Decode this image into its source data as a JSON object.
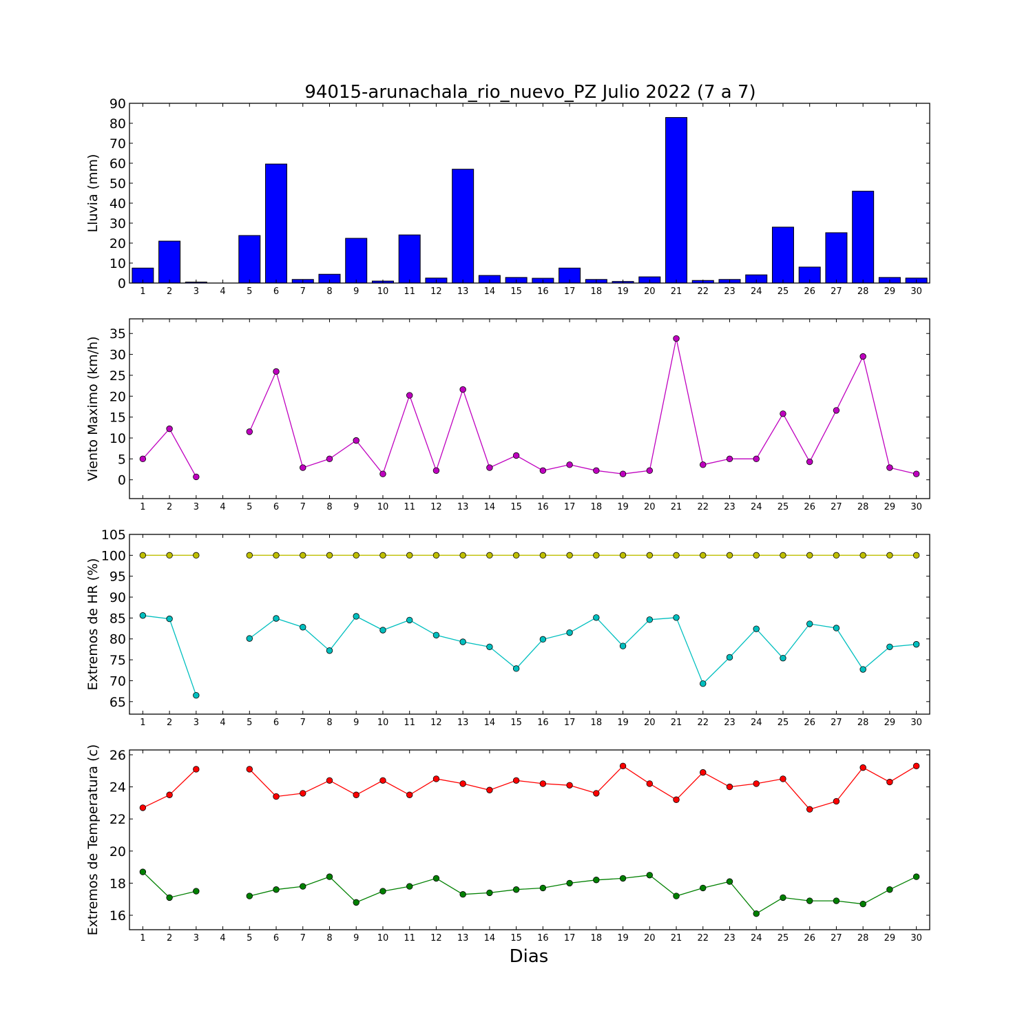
{
  "figure": {
    "title": "94015-arunachala_rio_nuevo_PZ Julio 2022  (7 a 7)",
    "xlabel": "Dias"
  },
  "chart_data": [
    {
      "type": "bar",
      "ylabel": "Lluvia (mm)",
      "ylim": [
        0,
        90
      ],
      "yticks": [
        0,
        10,
        20,
        30,
        40,
        50,
        60,
        70,
        80,
        90
      ],
      "x": [
        1,
        2,
        3,
        4,
        5,
        6,
        7,
        8,
        9,
        10,
        11,
        12,
        13,
        14,
        15,
        16,
        17,
        18,
        19,
        20,
        21,
        22,
        23,
        24,
        25,
        26,
        27,
        28,
        29,
        30
      ],
      "xlim": [
        0.5,
        30.5
      ],
      "grid": false,
      "series": [
        {
          "color": "#0000ff",
          "values": [
            7.5,
            21,
            0.5,
            0,
            23.8,
            59.6,
            1.8,
            4.4,
            22.4,
            1.0,
            24.1,
            2.5,
            57.0,
            3.8,
            2.8,
            2.4,
            7.5,
            1.8,
            0.8,
            3.1,
            82.9,
            1.3,
            1.8,
            4.1,
            28.0,
            8.0,
            25.2,
            46.0,
            2.8,
            2.5
          ]
        }
      ]
    },
    {
      "type": "line",
      "ylabel": "Viento Maximo (km/h)",
      "ylim": [
        -4.5,
        38.5
      ],
      "yticks": [
        0,
        5,
        10,
        15,
        20,
        25,
        30,
        35
      ],
      "x": [
        1,
        2,
        3,
        4,
        5,
        6,
        7,
        8,
        9,
        10,
        11,
        12,
        13,
        14,
        15,
        16,
        17,
        18,
        19,
        20,
        21,
        22,
        23,
        24,
        25,
        26,
        27,
        28,
        29,
        30
      ],
      "xlim": [
        0.5,
        30.5
      ],
      "grid": false,
      "series": [
        {
          "color": "#bf00bf",
          "values": [
            5.0,
            12.2,
            0.7,
            null,
            11.5,
            25.9,
            2.9,
            5.0,
            9.4,
            1.4,
            20.2,
            2.2,
            21.6,
            2.9,
            5.8,
            2.2,
            3.6,
            2.2,
            1.4,
            2.2,
            33.8,
            3.6,
            5.0,
            5.0,
            15.8,
            4.3,
            16.6,
            29.5,
            2.9,
            1.4
          ]
        }
      ]
    },
    {
      "type": "line",
      "ylabel": "Extremos de HR (%)",
      "ylim": [
        62,
        105
      ],
      "yticks": [
        65,
        70,
        75,
        80,
        85,
        90,
        95,
        100,
        105
      ],
      "x": [
        1,
        2,
        3,
        4,
        5,
        6,
        7,
        8,
        9,
        10,
        11,
        12,
        13,
        14,
        15,
        16,
        17,
        18,
        19,
        20,
        21,
        22,
        23,
        24,
        25,
        26,
        27,
        28,
        29,
        30
      ],
      "xlim": [
        0.5,
        30.5
      ],
      "grid": false,
      "series": [
        {
          "color": "#bfbf00",
          "values": [
            100,
            100,
            100,
            null,
            100,
            100,
            100,
            100,
            100,
            100,
            100,
            100,
            100,
            100,
            100,
            100,
            100,
            100,
            100,
            100,
            100,
            100,
            100,
            100,
            100,
            100,
            100,
            100,
            100,
            100
          ]
        },
        {
          "color": "#00bfbf",
          "values": [
            85.6,
            84.8,
            66.5,
            null,
            80.1,
            84.9,
            82.8,
            77.2,
            85.4,
            82.1,
            84.5,
            80.9,
            79.3,
            78.1,
            72.9,
            79.9,
            81.5,
            85.1,
            78.3,
            84.6,
            85.1,
            69.3,
            75.6,
            82.4,
            75.4,
            83.6,
            82.6,
            72.7,
            78.1,
            78.7
          ]
        }
      ]
    },
    {
      "type": "line",
      "ylabel": "Extremos de Temperatura (c)",
      "ylim": [
        15.1,
        26.3
      ],
      "yticks": [
        16,
        18,
        20,
        22,
        24,
        26
      ],
      "x": [
        1,
        2,
        3,
        4,
        5,
        6,
        7,
        8,
        9,
        10,
        11,
        12,
        13,
        14,
        15,
        16,
        17,
        18,
        19,
        20,
        21,
        22,
        23,
        24,
        25,
        26,
        27,
        28,
        29,
        30
      ],
      "xlim": [
        0.5,
        30.5
      ],
      "grid": false,
      "series": [
        {
          "color": "#ff0000",
          "values": [
            22.7,
            23.5,
            25.1,
            null,
            25.1,
            23.4,
            23.6,
            24.4,
            23.5,
            24.4,
            23.5,
            24.5,
            24.2,
            23.8,
            24.4,
            24.2,
            24.1,
            23.6,
            25.3,
            24.2,
            23.2,
            24.9,
            24.0,
            24.2,
            24.5,
            22.6,
            23.1,
            25.2,
            24.3,
            25.3
          ]
        },
        {
          "color": "#008000",
          "values": [
            18.7,
            17.1,
            17.5,
            null,
            17.2,
            17.6,
            17.8,
            18.4,
            16.8,
            17.5,
            17.8,
            18.3,
            17.3,
            17.4,
            17.6,
            17.7,
            18.0,
            18.2,
            18.3,
            18.5,
            17.2,
            17.7,
            18.1,
            16.1,
            17.1,
            16.9,
            16.9,
            16.7,
            17.6,
            18.4
          ]
        }
      ]
    }
  ]
}
